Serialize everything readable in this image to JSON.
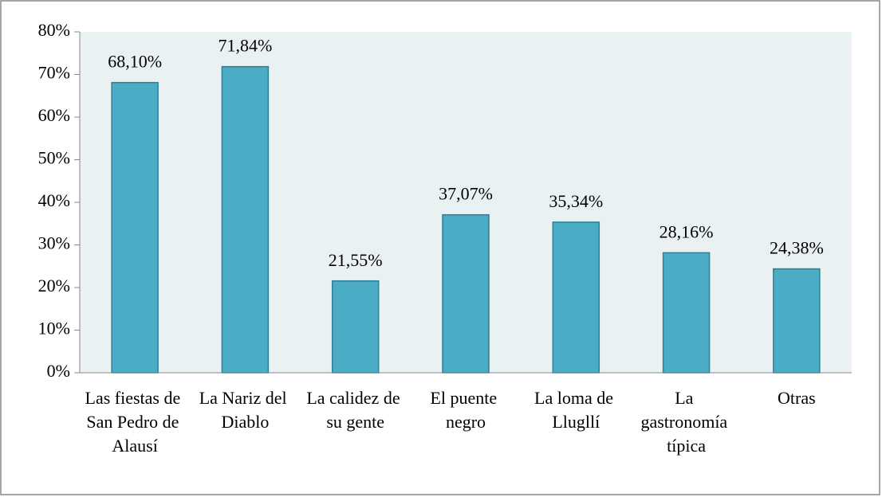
{
  "chart_data": {
    "type": "bar",
    "categories": [
      "Las fiestas de San Pedro de Alausí",
      "La Nariz del Diablo",
      "La calidez de su gente",
      "El puente negro",
      "La loma de Llugllí",
      "La gastronomía típica",
      "Otras"
    ],
    "values": [
      68.1,
      71.84,
      21.55,
      37.07,
      35.34,
      28.16,
      24.38
    ],
    "value_labels": [
      "68,10%",
      "71,84%",
      "21,55%",
      "37,07%",
      "35,34%",
      "28,16%",
      "24,38%"
    ],
    "color": "#4bacc6",
    "ylim": [
      0,
      80
    ],
    "yticks": [
      {
        "value": 0,
        "label": "0%"
      },
      {
        "value": 10,
        "label": "10%"
      },
      {
        "value": 20,
        "label": "20%"
      },
      {
        "value": 30,
        "label": "30%"
      },
      {
        "value": 40,
        "label": "40%"
      },
      {
        "value": 50,
        "label": "50%"
      },
      {
        "value": 60,
        "label": "60%"
      },
      {
        "value": 70,
        "label": "70%"
      },
      {
        "value": 80,
        "label": "80%"
      }
    ]
  }
}
